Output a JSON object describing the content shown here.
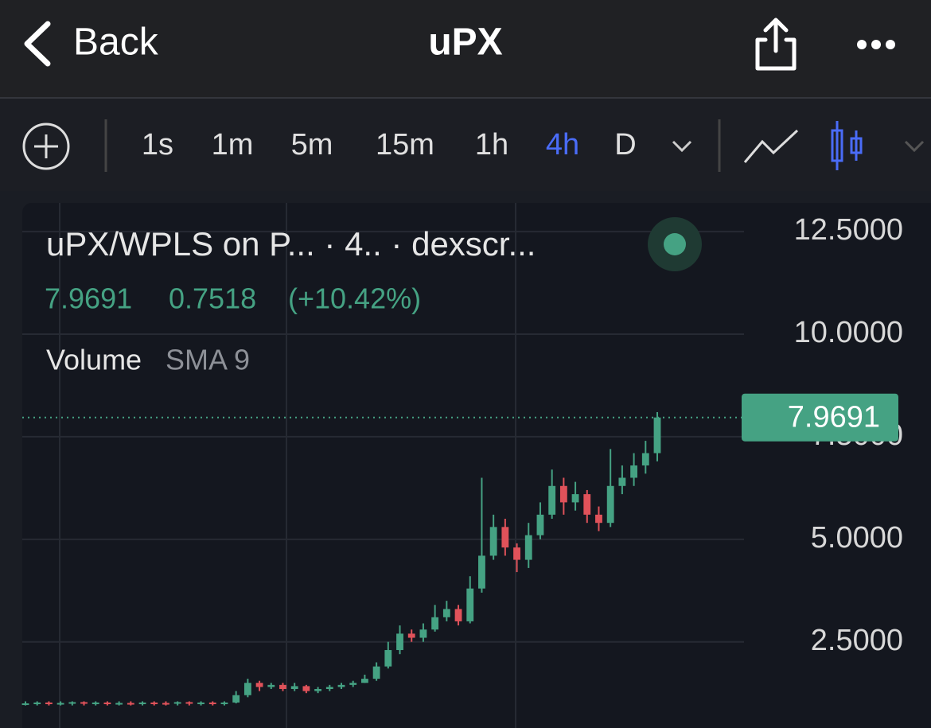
{
  "header": {
    "back": "Back",
    "title": "uPX"
  },
  "toolbar": {
    "intervals": [
      "1s",
      "1m",
      "5m",
      "15m",
      "1h",
      "4h",
      "D"
    ],
    "active": "4h"
  },
  "chart_data": {
    "type": "candlestick",
    "legend": {
      "title": "uPX/WPLS on P... · 4.. · dexscr...",
      "change": 0.7518,
      "change_pct_label": "(+10.42%)",
      "indicator": "Volume",
      "indicator_param": "SMA 9"
    },
    "up_color": "#45a283",
    "down_color": "#e0525a",
    "ylim": [
      0.4,
      13.2
    ],
    "yticks": [
      {
        "value": 2.5,
        "label": "2.5000"
      },
      {
        "value": 5,
        "label": "5.0000"
      },
      {
        "value": 7.5,
        "label": "7.5000"
      },
      {
        "value": 10,
        "label": "10.0000"
      },
      {
        "value": 12.5,
        "label": "12.5000"
      }
    ],
    "grid": true,
    "open": [
      1.0,
      1.0,
      1.02,
      1.0,
      1.01,
      1.03,
      1.0,
      1.02,
      0.99,
      1.01,
      1.0,
      1.02,
      1.01,
      1.0,
      1.03,
      1.01,
      1.02,
      1.0,
      1.02,
      1.2,
      1.5,
      1.4,
      1.45,
      1.35,
      1.42,
      1.3,
      1.35,
      1.4,
      1.45,
      1.5,
      1.6,
      1.9,
      2.3,
      2.7,
      2.6,
      2.8,
      3.1,
      3.3,
      3.0,
      3.8,
      4.6,
      5.3,
      4.8,
      4.5,
      5.1,
      5.6,
      6.3,
      5.9,
      6.1,
      5.6,
      5.4,
      6.3,
      6.5,
      6.8,
      7.1
    ],
    "high": [
      1.05,
      1.05,
      1.05,
      1.05,
      1.05,
      1.05,
      1.05,
      1.05,
      1.05,
      1.05,
      1.05,
      1.05,
      1.05,
      1.05,
      1.05,
      1.05,
      1.05,
      1.05,
      1.3,
      1.6,
      1.55,
      1.5,
      1.5,
      1.5,
      1.45,
      1.4,
      1.45,
      1.5,
      1.55,
      1.7,
      2.0,
      2.5,
      2.9,
      2.8,
      2.95,
      3.4,
      3.5,
      3.4,
      4.1,
      6.5,
      5.6,
      5.5,
      4.9,
      5.4,
      5.9,
      6.7,
      6.5,
      6.4,
      6.2,
      5.8,
      7.2,
      6.8,
      7.1,
      7.4,
      8.1
    ],
    "low": [
      0.95,
      0.95,
      0.95,
      0.95,
      0.95,
      0.95,
      0.95,
      0.95,
      0.95,
      0.95,
      0.95,
      0.95,
      0.95,
      0.95,
      0.95,
      0.95,
      0.95,
      0.95,
      1.0,
      1.15,
      1.3,
      1.35,
      1.3,
      1.3,
      1.25,
      1.25,
      1.3,
      1.35,
      1.4,
      1.5,
      1.55,
      1.85,
      2.2,
      2.5,
      2.5,
      2.75,
      3.0,
      2.9,
      2.95,
      3.7,
      4.5,
      4.6,
      4.2,
      4.3,
      5.0,
      5.5,
      5.6,
      5.7,
      5.4,
      5.2,
      5.3,
      6.1,
      6.3,
      6.6,
      6.9
    ],
    "close": [
      1.0,
      1.02,
      1.0,
      1.01,
      1.03,
      1.0,
      1.02,
      0.99,
      1.01,
      1.0,
      1.02,
      1.01,
      1.0,
      1.03,
      1.01,
      1.02,
      1.0,
      1.02,
      1.2,
      1.5,
      1.4,
      1.45,
      1.35,
      1.42,
      1.3,
      1.35,
      1.4,
      1.45,
      1.5,
      1.6,
      1.9,
      2.3,
      2.7,
      2.6,
      2.8,
      3.1,
      3.3,
      3.0,
      3.8,
      4.6,
      5.3,
      4.8,
      4.5,
      5.1,
      5.6,
      6.3,
      5.9,
      6.1,
      5.6,
      5.4,
      6.3,
      6.5,
      6.8,
      7.1,
      7.9691
    ]
  }
}
